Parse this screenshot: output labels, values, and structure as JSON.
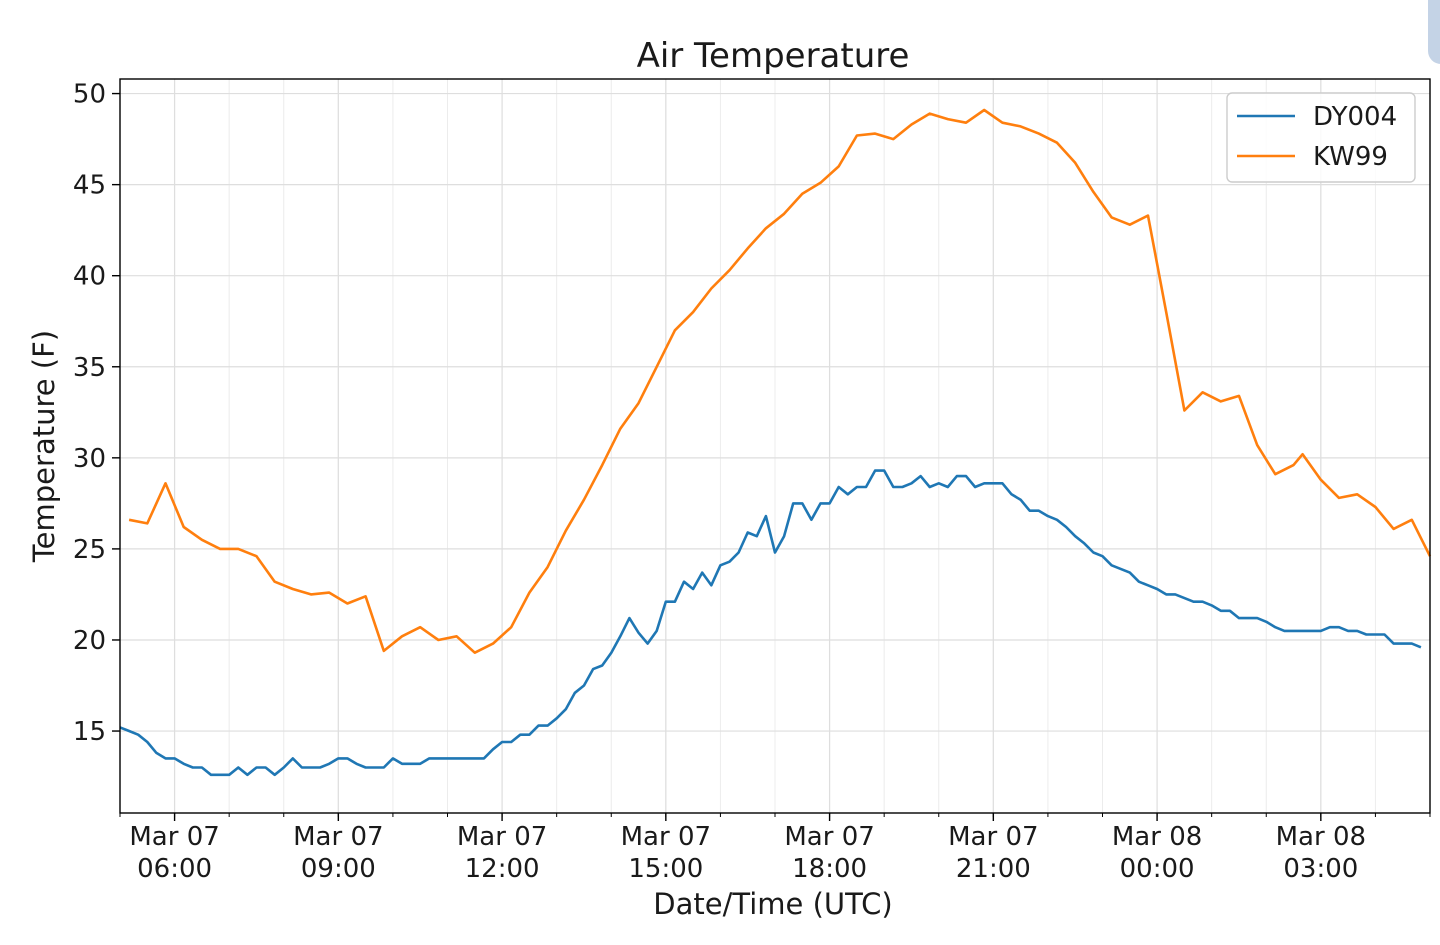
{
  "chart_data": {
    "type": "line",
    "title": "Air Temperature",
    "xlabel": "Date/Time (UTC)",
    "ylabel": "Temperature (F)",
    "xlim": [
      "2023-03-07T05:00",
      "2023-03-08T05:00"
    ],
    "ylim": [
      10.5,
      50.8
    ],
    "yticks": [
      15,
      20,
      25,
      30,
      35,
      40,
      45,
      50
    ],
    "xticks": [
      {
        "t": "2023-03-07T06:00",
        "line1": "Mar 07",
        "line2": "06:00"
      },
      {
        "t": "2023-03-07T09:00",
        "line1": "Mar 07",
        "line2": "09:00"
      },
      {
        "t": "2023-03-07T12:00",
        "line1": "Mar 07",
        "line2": "12:00"
      },
      {
        "t": "2023-03-07T15:00",
        "line1": "Mar 07",
        "line2": "15:00"
      },
      {
        "t": "2023-03-07T18:00",
        "line1": "Mar 07",
        "line2": "18:00"
      },
      {
        "t": "2023-03-07T21:00",
        "line1": "Mar 07",
        "line2": "21:00"
      },
      {
        "t": "2023-03-08T00:00",
        "line1": "Mar 08",
        "line2": "00:00"
      },
      {
        "t": "2023-03-08T03:00",
        "line1": "Mar 08",
        "line2": "03:00"
      }
    ],
    "grid": true,
    "legend_position": "top-right",
    "series": [
      {
        "name": "DY004",
        "color": "#1f77b4",
        "points": [
          [
            "2023-03-07T05:00",
            15.2
          ],
          [
            "2023-03-07T05:10",
            15.0
          ],
          [
            "2023-03-07T05:20",
            14.8
          ],
          [
            "2023-03-07T05:30",
            14.4
          ],
          [
            "2023-03-07T05:40",
            13.8
          ],
          [
            "2023-03-07T05:50",
            13.5
          ],
          [
            "2023-03-07T06:00",
            13.5
          ],
          [
            "2023-03-07T06:10",
            13.2
          ],
          [
            "2023-03-07T06:20",
            13.0
          ],
          [
            "2023-03-07T06:30",
            13.0
          ],
          [
            "2023-03-07T06:40",
            12.6
          ],
          [
            "2023-03-07T06:50",
            12.6
          ],
          [
            "2023-03-07T07:00",
            12.6
          ],
          [
            "2023-03-07T07:10",
            13.0
          ],
          [
            "2023-03-07T07:20",
            12.6
          ],
          [
            "2023-03-07T07:30",
            13.0
          ],
          [
            "2023-03-07T07:40",
            13.0
          ],
          [
            "2023-03-07T07:50",
            12.6
          ],
          [
            "2023-03-07T08:00",
            13.0
          ],
          [
            "2023-03-07T08:10",
            13.5
          ],
          [
            "2023-03-07T08:20",
            13.0
          ],
          [
            "2023-03-07T08:30",
            13.0
          ],
          [
            "2023-03-07T08:40",
            13.0
          ],
          [
            "2023-03-07T08:50",
            13.2
          ],
          [
            "2023-03-07T09:00",
            13.5
          ],
          [
            "2023-03-07T09:10",
            13.5
          ],
          [
            "2023-03-07T09:20",
            13.2
          ],
          [
            "2023-03-07T09:30",
            13.0
          ],
          [
            "2023-03-07T09:40",
            13.0
          ],
          [
            "2023-03-07T09:50",
            13.0
          ],
          [
            "2023-03-07T10:00",
            13.5
          ],
          [
            "2023-03-07T10:10",
            13.2
          ],
          [
            "2023-03-07T10:20",
            13.2
          ],
          [
            "2023-03-07T10:30",
            13.2
          ],
          [
            "2023-03-07T10:40",
            13.5
          ],
          [
            "2023-03-07T10:50",
            13.5
          ],
          [
            "2023-03-07T11:00",
            13.5
          ],
          [
            "2023-03-07T11:10",
            13.5
          ],
          [
            "2023-03-07T11:20",
            13.5
          ],
          [
            "2023-03-07T11:30",
            13.5
          ],
          [
            "2023-03-07T11:40",
            13.5
          ],
          [
            "2023-03-07T11:50",
            14.0
          ],
          [
            "2023-03-07T12:00",
            14.4
          ],
          [
            "2023-03-07T12:10",
            14.4
          ],
          [
            "2023-03-07T12:20",
            14.8
          ],
          [
            "2023-03-07T12:30",
            14.8
          ],
          [
            "2023-03-07T12:40",
            15.3
          ],
          [
            "2023-03-07T12:50",
            15.3
          ],
          [
            "2023-03-07T13:00",
            15.7
          ],
          [
            "2023-03-07T13:10",
            16.2
          ],
          [
            "2023-03-07T13:20",
            17.1
          ],
          [
            "2023-03-07T13:30",
            17.5
          ],
          [
            "2023-03-07T13:40",
            18.4
          ],
          [
            "2023-03-07T13:50",
            18.6
          ],
          [
            "2023-03-07T14:00",
            19.3
          ],
          [
            "2023-03-07T14:10",
            20.2
          ],
          [
            "2023-03-07T14:20",
            21.2
          ],
          [
            "2023-03-07T14:30",
            20.4
          ],
          [
            "2023-03-07T14:40",
            19.8
          ],
          [
            "2023-03-07T14:50",
            20.5
          ],
          [
            "2023-03-07T15:00",
            22.1
          ],
          [
            "2023-03-07T15:10",
            22.1
          ],
          [
            "2023-03-07T15:20",
            23.2
          ],
          [
            "2023-03-07T15:30",
            22.8
          ],
          [
            "2023-03-07T15:40",
            23.7
          ],
          [
            "2023-03-07T15:50",
            23.0
          ],
          [
            "2023-03-07T16:00",
            24.1
          ],
          [
            "2023-03-07T16:10",
            24.3
          ],
          [
            "2023-03-07T16:20",
            24.8
          ],
          [
            "2023-03-07T16:30",
            25.9
          ],
          [
            "2023-03-07T16:40",
            25.7
          ],
          [
            "2023-03-07T16:50",
            26.8
          ],
          [
            "2023-03-07T17:00",
            24.8
          ],
          [
            "2023-03-07T17:10",
            25.7
          ],
          [
            "2023-03-07T17:20",
            27.5
          ],
          [
            "2023-03-07T17:30",
            27.5
          ],
          [
            "2023-03-07T17:40",
            26.6
          ],
          [
            "2023-03-07T17:50",
            27.5
          ],
          [
            "2023-03-07T18:00",
            27.5
          ],
          [
            "2023-03-07T18:10",
            28.4
          ],
          [
            "2023-03-07T18:20",
            28.0
          ],
          [
            "2023-03-07T18:30",
            28.4
          ],
          [
            "2023-03-07T18:40",
            28.4
          ],
          [
            "2023-03-07T18:50",
            29.3
          ],
          [
            "2023-03-07T19:00",
            29.3
          ],
          [
            "2023-03-07T19:10",
            28.4
          ],
          [
            "2023-03-07T19:20",
            28.4
          ],
          [
            "2023-03-07T19:30",
            28.6
          ],
          [
            "2023-03-07T19:40",
            29.0
          ],
          [
            "2023-03-07T19:50",
            28.4
          ],
          [
            "2023-03-07T20:00",
            28.6
          ],
          [
            "2023-03-07T20:10",
            28.4
          ],
          [
            "2023-03-07T20:20",
            29.0
          ],
          [
            "2023-03-07T20:30",
            29.0
          ],
          [
            "2023-03-07T20:40",
            28.4
          ],
          [
            "2023-03-07T20:50",
            28.6
          ],
          [
            "2023-03-07T21:00",
            28.6
          ],
          [
            "2023-03-07T21:10",
            28.6
          ],
          [
            "2023-03-07T21:20",
            28.0
          ],
          [
            "2023-03-07T21:30",
            27.7
          ],
          [
            "2023-03-07T21:40",
            27.1
          ],
          [
            "2023-03-07T21:50",
            27.1
          ],
          [
            "2023-03-07T22:00",
            26.8
          ],
          [
            "2023-03-07T22:10",
            26.6
          ],
          [
            "2023-03-07T22:20",
            26.2
          ],
          [
            "2023-03-07T22:30",
            25.7
          ],
          [
            "2023-03-07T22:40",
            25.3
          ],
          [
            "2023-03-07T22:50",
            24.8
          ],
          [
            "2023-03-07T23:00",
            24.6
          ],
          [
            "2023-03-07T23:10",
            24.1
          ],
          [
            "2023-03-07T23:20",
            23.9
          ],
          [
            "2023-03-07T23:30",
            23.7
          ],
          [
            "2023-03-07T23:40",
            23.2
          ],
          [
            "2023-03-07T23:50",
            23.0
          ],
          [
            "2023-03-08T00:00",
            22.8
          ],
          [
            "2023-03-08T00:10",
            22.5
          ],
          [
            "2023-03-08T00:20",
            22.5
          ],
          [
            "2023-03-08T00:30",
            22.3
          ],
          [
            "2023-03-08T00:40",
            22.1
          ],
          [
            "2023-03-08T00:50",
            22.1
          ],
          [
            "2023-03-08T01:00",
            21.9
          ],
          [
            "2023-03-08T01:10",
            21.6
          ],
          [
            "2023-03-08T01:20",
            21.6
          ],
          [
            "2023-03-08T01:30",
            21.2
          ],
          [
            "2023-03-08T01:40",
            21.2
          ],
          [
            "2023-03-08T01:50",
            21.2
          ],
          [
            "2023-03-08T02:00",
            21.0
          ],
          [
            "2023-03-08T02:10",
            20.7
          ],
          [
            "2023-03-08T02:20",
            20.5
          ],
          [
            "2023-03-08T02:30",
            20.5
          ],
          [
            "2023-03-08T02:40",
            20.5
          ],
          [
            "2023-03-08T02:50",
            20.5
          ],
          [
            "2023-03-08T03:00",
            20.5
          ],
          [
            "2023-03-08T03:10",
            20.7
          ],
          [
            "2023-03-08T03:20",
            20.7
          ],
          [
            "2023-03-08T03:30",
            20.5
          ],
          [
            "2023-03-08T03:40",
            20.5
          ],
          [
            "2023-03-08T03:50",
            20.3
          ],
          [
            "2023-03-08T04:00",
            20.3
          ],
          [
            "2023-03-08T04:10",
            20.3
          ],
          [
            "2023-03-08T04:20",
            19.8
          ],
          [
            "2023-03-08T04:30",
            19.8
          ],
          [
            "2023-03-08T04:40",
            19.8
          ],
          [
            "2023-03-08T04:50",
            19.6
          ]
        ]
      },
      {
        "name": "KW99",
        "color": "#ff7f0e",
        "points": [
          [
            "2023-03-07T05:10",
            26.6
          ],
          [
            "2023-03-07T05:30",
            26.4
          ],
          [
            "2023-03-07T05:50",
            28.6
          ],
          [
            "2023-03-07T06:10",
            26.2
          ],
          [
            "2023-03-07T06:30",
            25.5
          ],
          [
            "2023-03-07T06:50",
            25.0
          ],
          [
            "2023-03-07T07:10",
            25.0
          ],
          [
            "2023-03-07T07:30",
            24.6
          ],
          [
            "2023-03-07T07:50",
            23.2
          ],
          [
            "2023-03-07T08:10",
            22.8
          ],
          [
            "2023-03-07T08:30",
            22.5
          ],
          [
            "2023-03-07T08:50",
            22.6
          ],
          [
            "2023-03-07T09:10",
            22.0
          ],
          [
            "2023-03-07T09:30",
            22.4
          ],
          [
            "2023-03-07T09:50",
            19.4
          ],
          [
            "2023-03-07T10:10",
            20.2
          ],
          [
            "2023-03-07T10:30",
            20.7
          ],
          [
            "2023-03-07T10:50",
            20.0
          ],
          [
            "2023-03-07T11:10",
            20.2
          ],
          [
            "2023-03-07T11:30",
            19.3
          ],
          [
            "2023-03-07T11:50",
            19.8
          ],
          [
            "2023-03-07T12:10",
            20.7
          ],
          [
            "2023-03-07T12:30",
            22.6
          ],
          [
            "2023-03-07T12:50",
            24.0
          ],
          [
            "2023-03-07T13:10",
            26.0
          ],
          [
            "2023-03-07T13:30",
            27.7
          ],
          [
            "2023-03-07T13:50",
            29.6
          ],
          [
            "2023-03-07T14:10",
            31.6
          ],
          [
            "2023-03-07T14:30",
            33.0
          ],
          [
            "2023-03-07T14:50",
            35.0
          ],
          [
            "2023-03-07T15:10",
            37.0
          ],
          [
            "2023-03-07T15:30",
            38.0
          ],
          [
            "2023-03-07T15:50",
            39.3
          ],
          [
            "2023-03-07T16:10",
            40.3
          ],
          [
            "2023-03-07T16:30",
            41.5
          ],
          [
            "2023-03-07T16:50",
            42.6
          ],
          [
            "2023-03-07T17:10",
            43.4
          ],
          [
            "2023-03-07T17:30",
            44.5
          ],
          [
            "2023-03-07T17:50",
            45.1
          ],
          [
            "2023-03-07T18:10",
            46.0
          ],
          [
            "2023-03-07T18:30",
            47.7
          ],
          [
            "2023-03-07T18:50",
            47.8
          ],
          [
            "2023-03-07T19:10",
            47.5
          ],
          [
            "2023-03-07T19:30",
            48.3
          ],
          [
            "2023-03-07T19:50",
            48.9
          ],
          [
            "2023-03-07T20:10",
            48.6
          ],
          [
            "2023-03-07T20:30",
            48.4
          ],
          [
            "2023-03-07T20:50",
            49.1
          ],
          [
            "2023-03-07T21:10",
            48.4
          ],
          [
            "2023-03-07T21:30",
            48.2
          ],
          [
            "2023-03-07T21:50",
            47.8
          ],
          [
            "2023-03-07T22:10",
            47.3
          ],
          [
            "2023-03-07T22:30",
            46.2
          ],
          [
            "2023-03-07T22:50",
            44.6
          ],
          [
            "2023-03-07T23:10",
            43.2
          ],
          [
            "2023-03-07T23:30",
            42.8
          ],
          [
            "2023-03-07T23:50",
            43.3
          ],
          [
            "2023-03-08T00:10",
            38.0
          ],
          [
            "2023-03-08T00:30",
            32.6
          ],
          [
            "2023-03-08T00:50",
            33.6
          ],
          [
            "2023-03-08T01:10",
            33.1
          ],
          [
            "2023-03-08T01:30",
            33.4
          ],
          [
            "2023-03-08T01:50",
            30.7
          ],
          [
            "2023-03-08T02:10",
            29.1
          ],
          [
            "2023-03-08T02:30",
            29.6
          ],
          [
            "2023-03-08T02:40",
            30.2
          ],
          [
            "2023-03-08T03:00",
            28.8
          ],
          [
            "2023-03-08T03:20",
            27.8
          ],
          [
            "2023-03-08T03:40",
            28.0
          ],
          [
            "2023-03-08T04:00",
            27.3
          ],
          [
            "2023-03-08T04:20",
            26.1
          ],
          [
            "2023-03-08T04:40",
            26.6
          ],
          [
            "2023-03-08T05:00",
            24.6
          ]
        ]
      }
    ]
  }
}
